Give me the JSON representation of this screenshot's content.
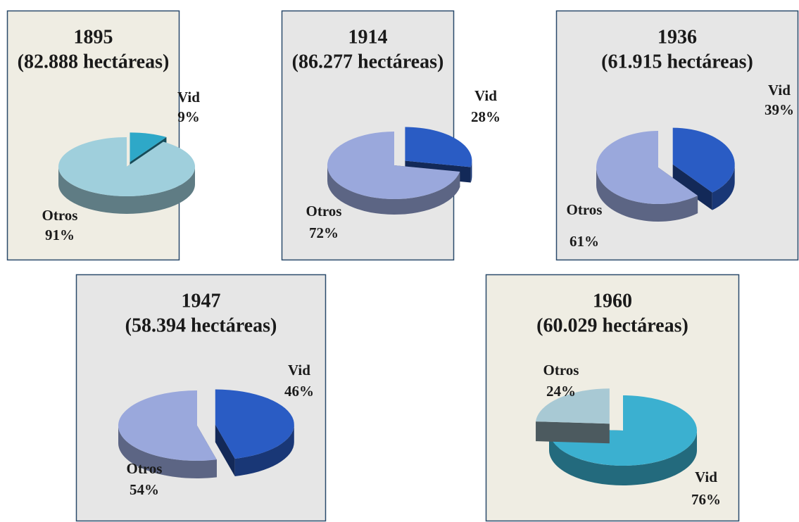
{
  "chart_data": [
    {
      "type": "pie",
      "title": "1895",
      "subtitle": "(82.888 hectáreas)",
      "categories": [
        "Vid",
        "Otros"
      ],
      "values": [
        9,
        91
      ],
      "value_labels": [
        "9%",
        "91%"
      ],
      "colors": [
        "#2ea8c8",
        "#9fcfdc"
      ]
    },
    {
      "type": "pie",
      "title": "1914",
      "subtitle": "(86.277 hectáreas)",
      "categories": [
        "Vid",
        "Otros"
      ],
      "values": [
        28,
        72
      ],
      "value_labels": [
        "28%",
        "72%"
      ],
      "colors": [
        "#2a5cc4",
        "#9aa8dc"
      ]
    },
    {
      "type": "pie",
      "title": "1936",
      "subtitle": "(61.915 hectáreas)",
      "categories": [
        "Vid",
        "Otros"
      ],
      "values": [
        39,
        61
      ],
      "value_labels": [
        "39%",
        "61%"
      ],
      "colors": [
        "#2a5cc4",
        "#9aa8dc"
      ]
    },
    {
      "type": "pie",
      "title": "1947",
      "subtitle": "(58.394 hectáreas)",
      "categories": [
        "Vid",
        "Otros"
      ],
      "values": [
        46,
        54
      ],
      "value_labels": [
        "46%",
        "54%"
      ],
      "colors": [
        "#2a5cc4",
        "#9aa8dc"
      ]
    },
    {
      "type": "pie",
      "title": "1960",
      "subtitle": "(60.029 hectáreas)",
      "categories": [
        "Vid",
        "Otros"
      ],
      "values": [
        76,
        24
      ],
      "value_labels": [
        "76%",
        "24%"
      ],
      "colors": [
        "#3bb0d0",
        "#a8c9d4"
      ]
    }
  ]
}
